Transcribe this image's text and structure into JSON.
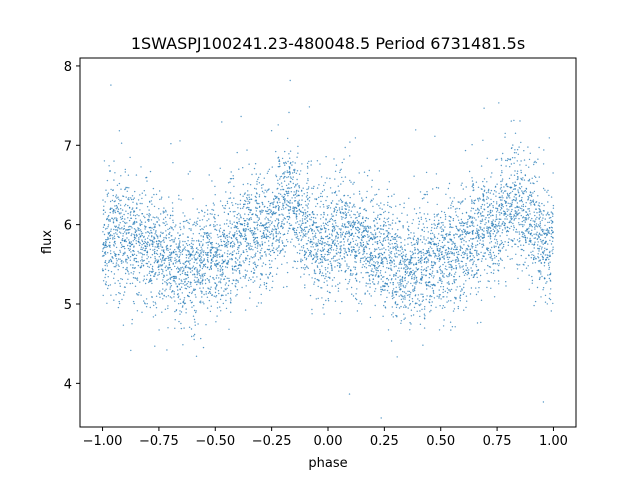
{
  "chart_data": {
    "type": "scatter",
    "title": "1SWASPJ100241.23-480048.5 Period 6731481.5s",
    "xlabel": "phase",
    "ylabel": "flux",
    "xlim": [
      -1.1,
      1.1
    ],
    "ylim": [
      3.45,
      8.1
    ],
    "x_ticks": [
      -1.0,
      -0.75,
      -0.5,
      -0.25,
      0.0,
      0.25,
      0.5,
      0.75,
      1.0
    ],
    "x_tick_labels": [
      "−1.00",
      "−0.75",
      "−0.50",
      "−0.25",
      "0.00",
      "0.25",
      "0.50",
      "0.75",
      "1.00"
    ],
    "y_ticks": [
      4,
      5,
      6,
      7,
      8
    ],
    "y_tick_labels": [
      "4",
      "5",
      "6",
      "7",
      "8"
    ],
    "grid": false,
    "legend": "none",
    "marker_color": "#1f77b4",
    "series": [
      {
        "points_note_omitted": true,
        "x": [
          -0.99,
          -0.97,
          -0.95,
          -0.93,
          -0.91,
          -0.89,
          -0.87,
          -0.85,
          -0.83,
          -0.81,
          -0.79,
          -0.77,
          -0.75,
          -0.73,
          -0.71,
          -0.69,
          -0.67,
          -0.65,
          -0.63,
          -0.61,
          -0.59,
          -0.57,
          -0.55,
          -0.53,
          -0.51,
          -0.49,
          -0.47,
          -0.45,
          -0.43,
          -0.41,
          -0.39,
          -0.37,
          -0.35,
          -0.33,
          -0.31,
          -0.29,
          -0.27,
          -0.25,
          -0.23,
          -0.21,
          -0.19,
          -0.17,
          -0.15,
          -0.13,
          -0.11,
          -0.09,
          -0.07,
          -0.05,
          -0.03,
          -0.01,
          0.01,
          0.03,
          0.05,
          0.07,
          0.09,
          0.11,
          0.13,
          0.15,
          0.17,
          0.19,
          0.21,
          0.23,
          0.25,
          0.27,
          0.29,
          0.31,
          0.33,
          0.35,
          0.37,
          0.39,
          0.41,
          0.43,
          0.45,
          0.47,
          0.49,
          0.51,
          0.53,
          0.55,
          0.57,
          0.59,
          0.61,
          0.63,
          0.65,
          0.67,
          0.69,
          0.71,
          0.73,
          0.75,
          0.77,
          0.79,
          0.81,
          0.83,
          0.85,
          0.87,
          0.89,
          0.91,
          0.93,
          0.95,
          0.97,
          0.99
        ],
        "y": [
          5.8,
          5.85,
          5.9,
          5.85,
          5.9,
          5.85,
          5.8,
          5.75,
          5.75,
          5.7,
          5.7,
          5.65,
          5.6,
          5.6,
          5.55,
          5.55,
          5.5,
          5.45,
          5.45,
          5.5,
          5.45,
          5.5,
          5.55,
          5.55,
          5.6,
          5.55,
          5.6,
          5.65,
          5.7,
          5.75,
          5.8,
          5.85,
          5.9,
          5.85,
          5.95,
          6.0,
          5.9,
          6.05,
          6.1,
          6.2,
          6.3,
          6.3,
          6.25,
          6.15,
          6.0,
          6.0,
          5.85,
          5.8,
          5.75,
          5.8,
          5.8,
          5.85,
          5.9,
          5.85,
          5.9,
          5.85,
          5.8,
          5.75,
          5.75,
          5.7,
          5.7,
          5.65,
          5.6,
          5.6,
          5.55,
          5.55,
          5.5,
          5.45,
          5.45,
          5.5,
          5.45,
          5.5,
          5.55,
          5.55,
          5.6,
          5.55,
          5.6,
          5.65,
          5.7,
          5.75,
          5.8,
          5.85,
          5.9,
          5.85,
          5.95,
          6.0,
          5.9,
          6.05,
          6.1,
          6.2,
          6.3,
          6.3,
          6.25,
          6.15,
          6.0,
          6.0,
          5.85,
          5.8,
          5.75,
          5.8
        ],
        "spread": [
          0.35,
          0.35,
          0.35,
          0.35,
          0.35,
          0.35,
          0.35,
          0.35,
          0.35,
          0.35,
          0.35,
          0.35,
          0.35,
          0.35,
          0.35,
          0.35,
          0.35,
          0.35,
          0.35,
          0.35,
          0.35,
          0.35,
          0.35,
          0.35,
          0.35,
          0.35,
          0.35,
          0.35,
          0.35,
          0.35,
          0.35,
          0.35,
          0.35,
          0.35,
          0.35,
          0.35,
          0.35,
          0.35,
          0.35,
          0.35,
          0.35,
          0.35,
          0.35,
          0.35,
          0.35,
          0.35,
          0.35,
          0.35,
          0.35,
          0.35,
          0.35,
          0.35,
          0.35,
          0.35,
          0.35,
          0.35,
          0.35,
          0.35,
          0.35,
          0.35,
          0.35,
          0.35,
          0.35,
          0.35,
          0.35,
          0.35,
          0.35,
          0.35,
          0.35,
          0.35,
          0.35,
          0.35,
          0.35,
          0.35,
          0.35,
          0.35,
          0.35,
          0.35,
          0.35,
          0.35,
          0.35,
          0.35,
          0.35,
          0.35,
          0.35,
          0.35,
          0.35,
          0.35,
          0.35,
          0.35,
          0.35,
          0.35,
          0.35,
          0.35,
          0.35,
          0.35,
          0.35,
          0.35,
          0.35,
          0.35
        ]
      }
    ]
  }
}
